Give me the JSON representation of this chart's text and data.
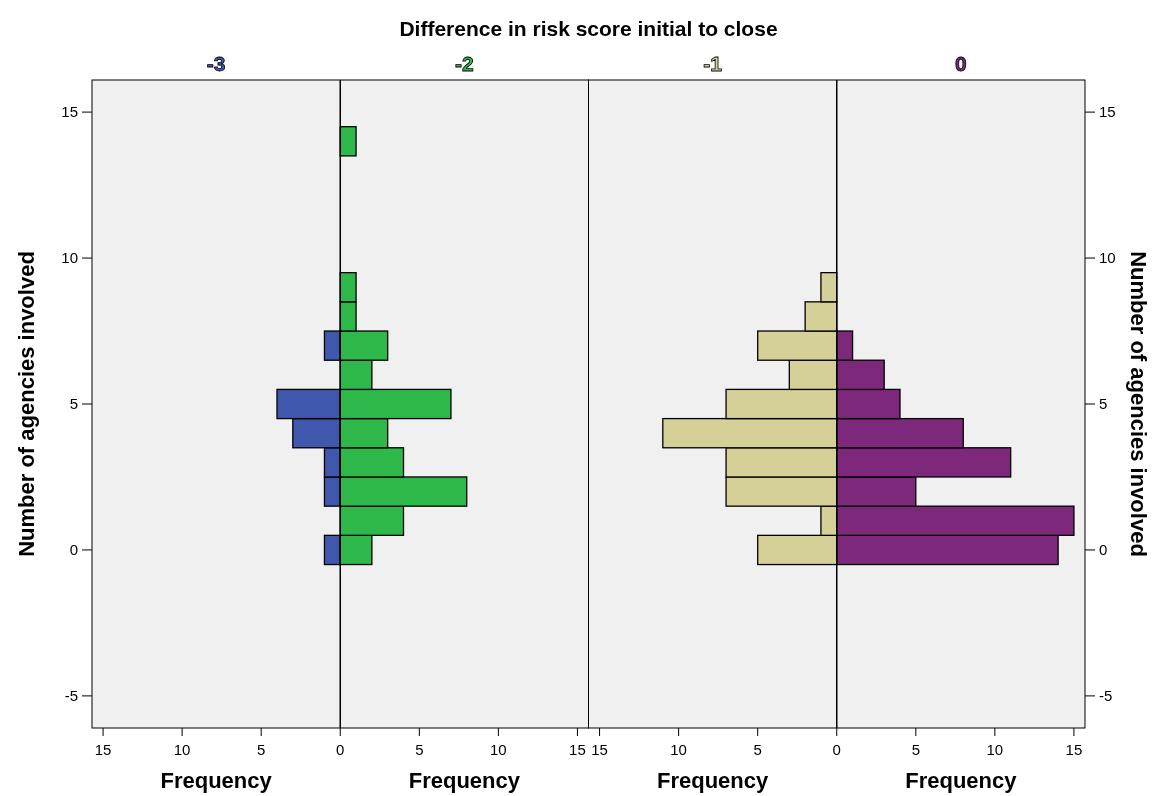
{
  "chart_data": [
    {
      "type": "bar",
      "orientation": "horizontal",
      "stacked": true,
      "title": "Difference in risk score initial to close",
      "xlabel": "Frequency",
      "ylabel": "Number of agencies involved",
      "xlim": [
        -15.7,
        15.7
      ],
      "xticks": [
        {
          "value": -15,
          "label": "15"
        },
        {
          "value": -10,
          "label": "10"
        },
        {
          "value": -5,
          "label": "5"
        },
        0,
        5,
        10,
        15
      ],
      "ylim": [
        -6.1,
        16.1
      ],
      "yticks": [
        -5,
        0,
        5,
        10,
        15
      ],
      "series": [
        {
          "name": "-3",
          "color": "#3f58ae",
          "x": [
            0,
            2,
            3,
            4,
            5,
            7
          ],
          "values": [
            -1,
            -1,
            -1,
            -3,
            -4,
            -1
          ]
        },
        {
          "name": "-2",
          "color": "#2fb84a",
          "x": [
            0,
            1,
            2,
            3,
            4,
            5,
            6,
            7,
            8,
            9,
            14
          ],
          "values": [
            2,
            4,
            8,
            4,
            3,
            7,
            2,
            3,
            1,
            1,
            1
          ]
        }
      ]
    },
    {
      "type": "bar",
      "orientation": "horizontal",
      "stacked": true,
      "xlabel": "Frequency",
      "ylabel": "Number of agencies involved",
      "xlim": [
        -15.7,
        15.7
      ],
      "xticks": [
        {
          "value": -15,
          "label": "15"
        },
        {
          "value": -10,
          "label": "10"
        },
        {
          "value": -5,
          "label": "5"
        },
        0,
        5,
        10,
        15
      ],
      "ylim": [
        -6.1,
        16.1
      ],
      "yticks": [
        -5,
        0,
        5,
        10,
        15
      ],
      "series": [
        {
          "name": "-1",
          "color": "#d5cf98",
          "x": [
            0,
            1,
            2,
            3,
            4,
            5,
            6,
            7,
            8,
            9
          ],
          "values": [
            -5,
            -1,
            -7,
            -7,
            -11,
            -7,
            -3,
            -5,
            -2,
            -1
          ]
        },
        {
          "name": "0",
          "color": "#7e287c",
          "x": [
            0,
            1,
            2,
            3,
            4,
            5,
            6,
            7
          ],
          "values": [
            14,
            15,
            5,
            11,
            8,
            4,
            3,
            1
          ]
        }
      ]
    }
  ]
}
